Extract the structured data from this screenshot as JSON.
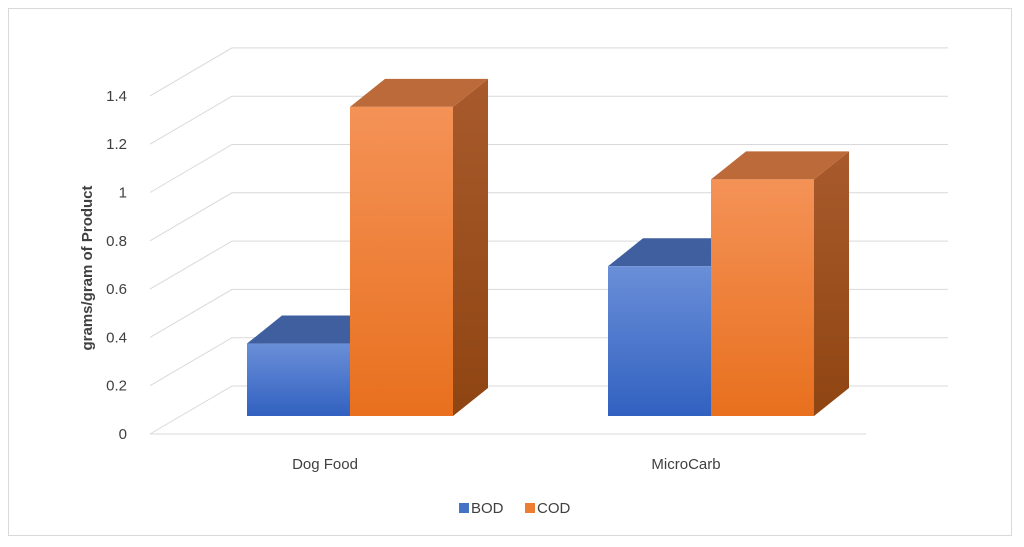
{
  "chart_data": {
    "type": "bar",
    "style": "3d-clustered-column",
    "categories": [
      "Dog Food",
      "MicroCarb"
    ],
    "series": [
      {
        "name": "BOD",
        "values": [
          0.3,
          0.62
        ],
        "color": "#4472c4"
      },
      {
        "name": "COD",
        "values": [
          1.28,
          0.98
        ],
        "color": "#ed7d31"
      }
    ],
    "yticks": [
      "0",
      "0.2",
      "0.4",
      "0.6",
      "0.8",
      "1",
      "1.2",
      "1.4"
    ],
    "ylim": [
      0,
      1.4
    ],
    "ylabel": "grams/gram of Product",
    "xlabel": "",
    "title": "",
    "grid": true,
    "legend_position": "bottom"
  }
}
